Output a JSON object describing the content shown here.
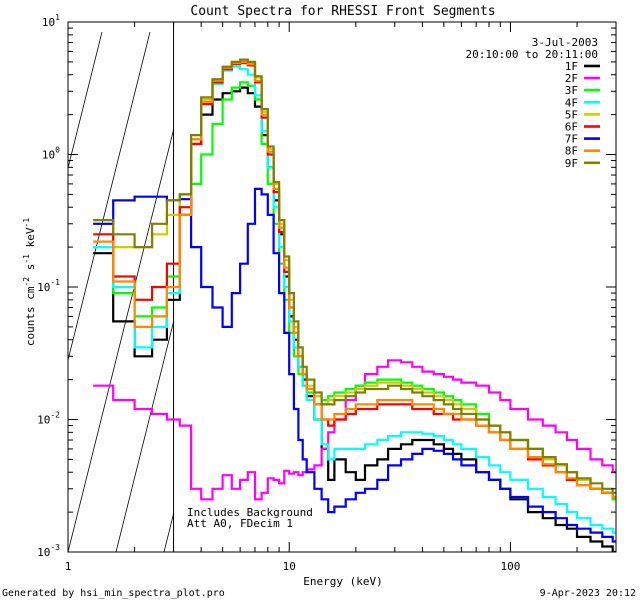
{
  "chart_data": {
    "type": "line",
    "style": "histogram-steps",
    "title": "Count Spectra for RHESSI Front Segments",
    "xlabel": "Energy (keV)",
    "ylabel_main": "counts cm",
    "ylabel_sup1": "-2",
    "ylabel_mid1": " s",
    "ylabel_sup2": "-1",
    "ylabel_mid2": " keV",
    "ylabel_sup3": "-1",
    "xscale": "log",
    "yscale": "log",
    "xlim": [
      1,
      300
    ],
    "ylim": [
      0.001,
      10
    ],
    "x_ticks": [
      {
        "value": 1,
        "label": "1"
      },
      {
        "value": 10,
        "label": "10"
      },
      {
        "value": 100,
        "label": "100"
      }
    ],
    "y_ticks": [
      {
        "value": 0.001,
        "base": "10",
        "exp": "-3"
      },
      {
        "value": 0.01,
        "base": "10",
        "exp": "-2"
      },
      {
        "value": 0.1,
        "base": "10",
        "exp": "-1"
      },
      {
        "value": 1,
        "base": "10",
        "exp": "0"
      },
      {
        "value": 10,
        "base": "10",
        "exp": "1"
      }
    ],
    "legend": {
      "position": "top-right",
      "date": "3-Jul-2003",
      "time_range": "20:10:00 to 20:11:00"
    },
    "annotations": {
      "line1": "Includes Background",
      "line2": "Att A0, FDecim 1",
      "hatched_region_xmax": 3
    },
    "energy_bins": [
      1.3,
      1.6,
      2.0,
      2.4,
      2.8,
      3.2,
      3.6,
      4.0,
      4.5,
      5.0,
      5.5,
      6.0,
      6.5,
      7.0,
      7.5,
      8.0,
      8.5,
      9.0,
      9.5,
      10.0,
      10.5,
      11.0,
      11.5,
      12.0,
      13.0,
      14.0,
      15.0,
      16.0,
      18.0,
      20.0,
      22.0,
      25.0,
      28.0,
      32.0,
      36.0,
      40.0,
      45.0,
      50.0,
      55.0,
      60.0,
      70.0,
      80.0,
      90.0,
      100.0,
      120.0,
      140.0,
      160.0,
      180.0,
      200.0,
      230.0,
      260.0,
      290.0
    ],
    "series": [
      {
        "name": "1F",
        "color": "#000000",
        "values": [
          0.18,
          0.055,
          0.03,
          0.04,
          0.08,
          0.35,
          1.2,
          2.0,
          2.6,
          2.9,
          3.0,
          3.2,
          2.9,
          2.3,
          1.4,
          0.8,
          0.45,
          0.25,
          0.12,
          0.06,
          0.04,
          0.025,
          0.02,
          0.015,
          0.01,
          0.006,
          0.0035,
          0.005,
          0.004,
          0.0035,
          0.0045,
          0.005,
          0.006,
          0.0065,
          0.007,
          0.007,
          0.0065,
          0.006,
          0.0055,
          0.005,
          0.004,
          0.0035,
          0.003,
          0.0025,
          0.002,
          0.0018,
          0.0016,
          0.0015,
          0.0013,
          0.0012,
          0.0011,
          0.001
        ]
      },
      {
        "name": "2F",
        "color": "#ff00ff",
        "values": [
          0.018,
          0.014,
          0.012,
          0.011,
          0.01,
          0.009,
          0.003,
          0.0025,
          0.003,
          0.0038,
          0.003,
          0.0035,
          0.004,
          0.0025,
          0.0028,
          0.0036,
          0.0035,
          0.0033,
          0.0041,
          0.0039,
          0.004,
          0.0038,
          0.004,
          0.0042,
          0.0045,
          0.006,
          0.008,
          0.01,
          0.014,
          0.018,
          0.022,
          0.025,
          0.028,
          0.027,
          0.025,
          0.023,
          0.022,
          0.021,
          0.02,
          0.019,
          0.018,
          0.016,
          0.014,
          0.012,
          0.01,
          0.009,
          0.008,
          0.007,
          0.006,
          0.005,
          0.0045,
          0.004
        ]
      },
      {
        "name": "3F",
        "color": "#00ff00",
        "values": [
          0.2,
          0.09,
          0.06,
          0.07,
          0.12,
          0.5,
          0.6,
          1.0,
          1.7,
          2.6,
          3.2,
          3.5,
          3.3,
          2.6,
          1.2,
          0.6,
          0.3,
          0.15,
          0.08,
          0.045,
          0.03,
          0.022,
          0.018,
          0.016,
          0.015,
          0.014,
          0.015,
          0.016,
          0.017,
          0.018,
          0.019,
          0.02,
          0.02,
          0.019,
          0.018,
          0.017,
          0.016,
          0.015,
          0.014,
          0.013,
          0.011,
          0.009,
          0.008,
          0.007,
          0.006,
          0.005,
          0.0045,
          0.004,
          0.0035,
          0.003,
          0.0028,
          0.0025
        ]
      },
      {
        "name": "4F",
        "color": "#00ffff",
        "values": [
          0.2,
          0.1,
          0.035,
          0.05,
          0.09,
          0.4,
          1.3,
          2.4,
          3.4,
          4.3,
          4.6,
          4.4,
          4.0,
          2.8,
          1.5,
          0.8,
          0.4,
          0.2,
          0.1,
          0.055,
          0.035,
          0.025,
          0.018,
          0.014,
          0.01,
          0.0065,
          0.005,
          0.006,
          0.006,
          0.006,
          0.0065,
          0.007,
          0.0075,
          0.008,
          0.008,
          0.0078,
          0.0075,
          0.007,
          0.0065,
          0.006,
          0.0052,
          0.0045,
          0.004,
          0.0035,
          0.003,
          0.0026,
          0.0023,
          0.002,
          0.0018,
          0.0016,
          0.0015,
          0.0014
        ]
      },
      {
        "name": "5F",
        "color": "#cccc00",
        "values": [
          0.3,
          0.2,
          0.2,
          0.25,
          0.35,
          0.5,
          1.3,
          2.6,
          3.6,
          4.5,
          5.0,
          5.1,
          4.9,
          3.8,
          2.1,
          1.1,
          0.6,
          0.3,
          0.16,
          0.08,
          0.05,
          0.03,
          0.022,
          0.018,
          0.015,
          0.013,
          0.014,
          0.015,
          0.016,
          0.017,
          0.018,
          0.019,
          0.019,
          0.018,
          0.017,
          0.016,
          0.015,
          0.014,
          0.013,
          0.012,
          0.01,
          0.009,
          0.008,
          0.007,
          0.006,
          0.005,
          0.0045,
          0.004,
          0.0035,
          0.003,
          0.0028,
          0.0026
        ]
      },
      {
        "name": "6F",
        "color": "#ff0000",
        "values": [
          0.25,
          0.12,
          0.08,
          0.1,
          0.15,
          0.4,
          1.2,
          2.4,
          3.5,
          4.4,
          4.8,
          4.9,
          4.7,
          3.5,
          1.9,
          1.0,
          0.52,
          0.26,
          0.13,
          0.07,
          0.045,
          0.03,
          0.022,
          0.017,
          0.013,
          0.01,
          0.009,
          0.01,
          0.011,
          0.012,
          0.012,
          0.013,
          0.013,
          0.013,
          0.012,
          0.012,
          0.011,
          0.011,
          0.01,
          0.01,
          0.009,
          0.008,
          0.007,
          0.006,
          0.005,
          0.0045,
          0.004,
          0.0035,
          0.0032,
          0.003,
          0.0028,
          0.0026
        ]
      },
      {
        "name": "7F",
        "color": "#0000ff",
        "values": [
          0.3,
          0.45,
          0.48,
          0.48,
          0.45,
          0.46,
          0.2,
          0.1,
          0.07,
          0.05,
          0.09,
          0.15,
          0.3,
          0.55,
          0.5,
          0.35,
          0.18,
          0.09,
          0.045,
          0.022,
          0.012,
          0.007,
          0.005,
          0.004,
          0.003,
          0.0025,
          0.002,
          0.0022,
          0.0025,
          0.0028,
          0.003,
          0.0035,
          0.0045,
          0.005,
          0.0055,
          0.006,
          0.0058,
          0.0055,
          0.005,
          0.0045,
          0.004,
          0.0035,
          0.003,
          0.0026,
          0.0022,
          0.002,
          0.0018,
          0.0016,
          0.0015,
          0.0014,
          0.0013,
          0.0012
        ]
      },
      {
        "name": "8F",
        "color": "#ff8800",
        "values": [
          0.22,
          0.11,
          0.05,
          0.06,
          0.1,
          0.35,
          1.3,
          2.5,
          3.6,
          4.5,
          4.9,
          5.0,
          4.8,
          3.6,
          2.0,
          1.05,
          0.55,
          0.28,
          0.14,
          0.07,
          0.045,
          0.03,
          0.022,
          0.017,
          0.013,
          0.01,
          0.01,
          0.011,
          0.012,
          0.013,
          0.013,
          0.014,
          0.014,
          0.014,
          0.013,
          0.013,
          0.012,
          0.011,
          0.011,
          0.01,
          0.009,
          0.008,
          0.007,
          0.006,
          0.0052,
          0.0046,
          0.004,
          0.0036,
          0.0032,
          0.003,
          0.0028,
          0.0026
        ]
      },
      {
        "name": "9F",
        "color": "#808000",
        "values": [
          0.32,
          0.25,
          0.2,
          0.3,
          0.45,
          0.5,
          1.4,
          2.7,
          3.7,
          4.6,
          5.0,
          5.2,
          5.0,
          3.9,
          2.2,
          1.15,
          0.62,
          0.32,
          0.17,
          0.09,
          0.055,
          0.035,
          0.025,
          0.02,
          0.016,
          0.013,
          0.013,
          0.014,
          0.015,
          0.016,
          0.017,
          0.017,
          0.018,
          0.017,
          0.016,
          0.015,
          0.014,
          0.013,
          0.012,
          0.011,
          0.01,
          0.009,
          0.008,
          0.007,
          0.006,
          0.0052,
          0.0046,
          0.004,
          0.0036,
          0.0033,
          0.003,
          0.0028
        ]
      }
    ]
  },
  "footer": {
    "left": "Generated by hsi_min_spectra_plot.pro",
    "right": "9-Apr-2023 20:12"
  }
}
